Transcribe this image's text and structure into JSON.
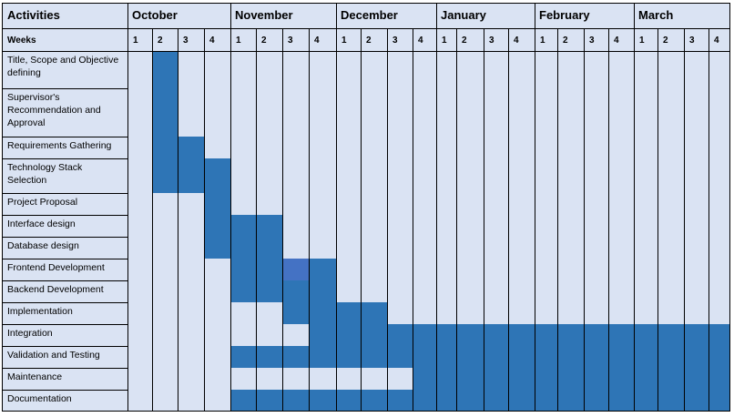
{
  "header": {
    "activities_label": "Activities",
    "weeks_label": "Weeks"
  },
  "months": [
    "October",
    "November",
    "December",
    "January",
    "February",
    "March"
  ],
  "weeks_per_month": [
    "1",
    "2",
    "3",
    "4"
  ],
  "chart_data": {
    "type": "gantt",
    "x_unit": "week",
    "tasks": [
      {
        "name": "Title, Scope and Objective defining",
        "lines": [
          "Title, Scope and Objective",
          "defining"
        ],
        "weeks": [
          2
        ]
      },
      {
        "name": "Supervisor's Recommendation and Approval",
        "lines": [
          "Supervisor's",
          "Recommendation and",
          "Approval"
        ],
        "weeks": [
          2
        ]
      },
      {
        "name": "Requirements Gathering",
        "lines": [
          "Requirements Gathering"
        ],
        "weeks": [
          2,
          3
        ]
      },
      {
        "name": "Technology Stack Selection",
        "lines": [
          "Technology Stack",
          "Selection"
        ],
        "weeks": [
          2,
          3,
          4
        ]
      },
      {
        "name": "Project Proposal",
        "lines": [
          "Project Proposal"
        ],
        "weeks": [
          4
        ]
      },
      {
        "name": "Interface design",
        "lines": [
          "Interface design"
        ],
        "weeks": [
          4,
          5,
          6
        ]
      },
      {
        "name": "Database design",
        "lines": [
          "Database design"
        ],
        "weeks": [
          4,
          5,
          6
        ]
      },
      {
        "name": "Frontend Development",
        "lines": [
          "Frontend Development"
        ],
        "weeks": [
          5,
          6,
          7,
          8
        ]
      },
      {
        "name": "Backend Development",
        "lines": [
          "Backend Development"
        ],
        "weeks": [
          5,
          6,
          7,
          8
        ]
      },
      {
        "name": "Implementation",
        "lines": [
          "Implementation"
        ],
        "weeks": [
          7,
          8,
          9,
          10
        ]
      },
      {
        "name": "Integration",
        "lines": [
          "Integration"
        ],
        "weeks": [
          8,
          9,
          10,
          11,
          12,
          13,
          14,
          15,
          16,
          17,
          18,
          19,
          20,
          21,
          22,
          23,
          24
        ]
      },
      {
        "name": "Validation and Testing",
        "lines": [
          "Validation and Testing"
        ],
        "weeks": [
          5,
          6,
          7,
          8,
          9,
          10,
          11,
          12,
          13,
          14,
          15,
          16,
          17,
          18,
          19,
          20,
          21,
          22,
          23,
          24
        ]
      },
      {
        "name": "Maintenance",
        "lines": [
          "Maintenance"
        ],
        "weeks": [
          12,
          13,
          14,
          15,
          16,
          17,
          18,
          19,
          20,
          21,
          22,
          23,
          24
        ]
      },
      {
        "name": "Documentation",
        "lines": [
          "Documentation"
        ],
        "weeks": [
          5,
          6,
          7,
          8,
          9,
          10,
          11,
          12,
          13,
          14,
          15,
          16,
          17,
          18,
          19,
          20,
          21,
          22,
          23,
          24
        ]
      }
    ],
    "highlight_cells": [
      {
        "task": "Frontend Development",
        "week": 7
      }
    ],
    "colors": {
      "background": "#dae3f3",
      "bar": "#2e75b6",
      "highlight": "#4472c4",
      "grid": "#000000"
    }
  }
}
